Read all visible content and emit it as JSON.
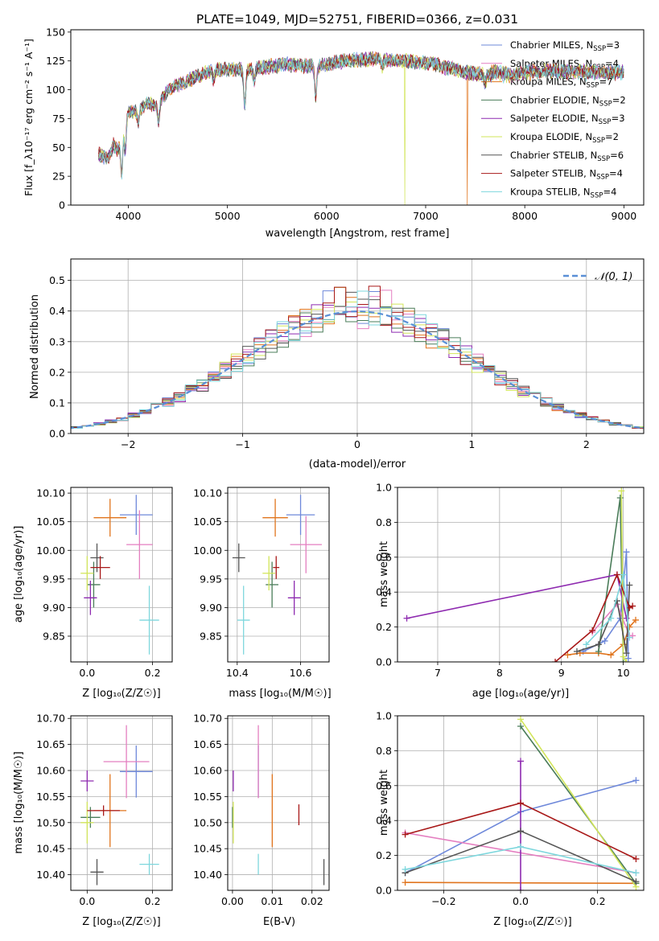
{
  "chart_data": [
    {
      "id": "spectrum",
      "type": "line",
      "title": "PLATE=1049, MJD=52751, FIBERID=0366, z=0.031",
      "xlabel": "wavelength [Angstrom, rest frame]",
      "ylabel": "Flux [f_λ10⁻¹⁷ erg cm⁻² s⁻¹ A⁻¹]",
      "xlim": [
        3420,
        9200
      ],
      "ylim": [
        0,
        152
      ],
      "xticks": [
        "4000",
        "5000",
        "6000",
        "7000",
        "8000",
        "9000"
      ],
      "yticks": [
        "0",
        "25",
        "50",
        "75",
        "100",
        "125",
        "150"
      ],
      "grid": false,
      "legend_position": "top-right",
      "continuum": {
        "x": [
          3700,
          3800,
          3850,
          3900,
          3950,
          4000,
          4100,
          4200,
          4300,
          4400,
          4500,
          4600,
          4700,
          4800,
          4900,
          5000,
          5100,
          5200,
          5300,
          5400,
          5500,
          5600,
          5700,
          5800,
          5900,
          6000,
          6100,
          6200,
          6300,
          6400,
          6500,
          6600,
          6700,
          6800,
          6900,
          7000,
          7100,
          7200,
          7300,
          7400,
          7500,
          7600,
          7700,
          7800,
          7900,
          8000,
          8200,
          8400,
          8600,
          8800,
          9000
        ],
        "y": [
          44,
          40,
          52,
          47,
          68,
          80,
          82,
          88,
          87,
          100,
          104,
          108,
          112,
          115,
          117,
          118,
          118,
          117,
          119,
          120,
          121,
          122,
          121,
          121,
          120,
          122,
          124,
          125,
          126,
          126,
          127,
          126,
          125,
          125,
          124,
          123,
          122,
          119,
          118,
          115,
          114,
          113,
          115,
          113,
          113,
          115,
          116,
          116,
          115,
          115,
          115
        ]
      },
      "absorption_features": [
        {
          "x": 3934,
          "depth": 35
        },
        {
          "x": 3969,
          "depth": 25
        },
        {
          "x": 4101,
          "depth": 10
        },
        {
          "x": 4304,
          "depth": 14
        },
        {
          "x": 4861,
          "depth": 8
        },
        {
          "x": 5175,
          "depth": 32
        },
        {
          "x": 5270,
          "depth": 10
        },
        {
          "x": 5890,
          "depth": 26
        },
        {
          "x": 6563,
          "depth": 8
        },
        {
          "x": 7600,
          "depth": 8
        }
      ],
      "glitches": [
        {
          "x": 6790,
          "series": 5,
          "y": 0
        },
        {
          "x": 7420,
          "series": 2,
          "y": 0
        }
      ],
      "series": [
        {
          "name": "Chabrier MILES, N",
          "sub": "SSP",
          "val": "=3",
          "color": "#6e88da"
        },
        {
          "name": "Salpeter MILES, N",
          "sub": "SSP",
          "val": "=4",
          "color": "#e47fc0"
        },
        {
          "name": "Kroupa MILES, N",
          "sub": "SSP",
          "val": "=7",
          "color": "#e0741d"
        },
        {
          "name": "Chabrier ELODIE, N",
          "sub": "SSP",
          "val": "=2",
          "color": "#4a7c59"
        },
        {
          "name": "Salpeter ELODIE, N",
          "sub": "SSP",
          "val": "=3",
          "color": "#8e2ab0"
        },
        {
          "name": "Kroupa ELODIE, N",
          "sub": "SSP",
          "val": "=2",
          "color": "#d2e55a"
        },
        {
          "name": "Chabrier STELIB, N",
          "sub": "SSP",
          "val": "=6",
          "color": "#555555"
        },
        {
          "name": "Salpeter STELIB, N",
          "sub": "SSP",
          "val": "=4",
          "color": "#a81818"
        },
        {
          "name": "Kroupa STELIB, N",
          "sub": "SSP",
          "val": "=4",
          "color": "#7ed7dd"
        }
      ]
    },
    {
      "id": "residuals",
      "type": "line",
      "xlabel": "(data-model)/error",
      "ylabel": "Normed distribution",
      "xlim": [
        -2.5,
        2.5
      ],
      "ylim": [
        0,
        0.57
      ],
      "xticks": [
        "−2",
        "−1",
        "0",
        "1",
        "2"
      ],
      "yticks": [
        "0.0",
        "0.1",
        "0.2",
        "0.3",
        "0.4",
        "0.5"
      ],
      "grid": true,
      "legend": "𝒩(0, 1)",
      "legend_position": "top-right",
      "bin_width": 0.1
    },
    {
      "id": "age-vs-Z",
      "type": "scatter",
      "xlabel": "Z [log₁₀(Z/Z☉)]",
      "ylabel": "age  [log₁₀(age/yr)]",
      "xlim": [
        -0.05,
        0.26
      ],
      "ylim": [
        9.805,
        10.11
      ],
      "xticks": [
        "0.0",
        "0.2"
      ],
      "yticks": [
        "9.85",
        "9.90",
        "9.95",
        "10.00",
        "10.05",
        "10.10"
      ],
      "grid": true,
      "points": [
        {
          "x": 0.15,
          "xerr": 0.05,
          "y": 10.062,
          "yerr": 0.035,
          "color": "#6e88da"
        },
        {
          "x": 0.16,
          "xerr": 0.04,
          "y": 10.01,
          "yerr": 0.06,
          "color": "#e47fc0"
        },
        {
          "x": 0.07,
          "xerr": 0.05,
          "y": 10.057,
          "yerr": 0.033,
          "color": "#e0741d"
        },
        {
          "x": 0.02,
          "xerr": 0.02,
          "y": 9.94,
          "yerr": 0.04,
          "color": "#4a7c59"
        },
        {
          "x": 0.01,
          "xerr": 0.02,
          "y": 9.917,
          "yerr": 0.03,
          "color": "#8e2ab0"
        },
        {
          "x": 0.0,
          "xerr": 0.02,
          "y": 9.96,
          "yerr": 0.03,
          "color": "#d2e55a"
        },
        {
          "x": 0.03,
          "xerr": 0.02,
          "y": 9.987,
          "yerr": 0.025,
          "color": "#555555"
        },
        {
          "x": 0.04,
          "xerr": 0.03,
          "y": 9.97,
          "yerr": 0.02,
          "color": "#a81818"
        },
        {
          "x": 0.19,
          "xerr": 0.03,
          "y": 9.878,
          "yerr": 0.06,
          "color": "#7ed7dd"
        }
      ]
    },
    {
      "id": "age-vs-mass",
      "type": "scatter",
      "xlabel": "mass [log₁₀(M/M☉)]",
      "xlim": [
        10.37,
        10.69
      ],
      "ylim": [
        9.805,
        10.11
      ],
      "xticks": [
        "10.4",
        "10.6"
      ],
      "yticks": [
        "9.85",
        "9.90",
        "9.95",
        "10.00",
        "10.05",
        "10.10"
      ],
      "grid": true,
      "points": [
        {
          "x": 10.6,
          "xerr": 0.045,
          "y": 10.062,
          "yerr": 0.035,
          "color": "#6e88da"
        },
        {
          "x": 10.617,
          "xerr": 0.05,
          "y": 10.01,
          "yerr": 0.05,
          "color": "#e47fc0"
        },
        {
          "x": 10.52,
          "xerr": 0.04,
          "y": 10.057,
          "yerr": 0.033,
          "color": "#e0741d"
        },
        {
          "x": 10.51,
          "xerr": 0.02,
          "y": 9.94,
          "yerr": 0.04,
          "color": "#4a7c59"
        },
        {
          "x": 10.58,
          "xerr": 0.02,
          "y": 9.917,
          "yerr": 0.03,
          "color": "#8e2ab0"
        },
        {
          "x": 10.5,
          "xerr": 0.02,
          "y": 9.96,
          "yerr": 0.03,
          "color": "#d2e55a"
        },
        {
          "x": 10.405,
          "xerr": 0.02,
          "y": 9.987,
          "yerr": 0.025,
          "color": "#555555"
        },
        {
          "x": 10.523,
          "xerr": 0.01,
          "y": 9.97,
          "yerr": 0.02,
          "color": "#a81818"
        },
        {
          "x": 10.42,
          "xerr": 0.02,
          "y": 9.878,
          "yerr": 0.06,
          "color": "#7ed7dd"
        }
      ]
    },
    {
      "id": "weight-vs-age",
      "type": "line",
      "xlabel": "age  [log₁₀(age/yr)]",
      "ylabel": "mass weight",
      "xlim": [
        6.35,
        10.33
      ],
      "ylim": [
        0,
        1.0
      ],
      "xticks": [
        "7",
        "8",
        "9",
        "10"
      ],
      "yticks": [
        "0.0",
        "0.2",
        "0.4",
        "0.6",
        "0.8",
        "1.0"
      ],
      "grid": true,
      "series": [
        {
          "color": "#6e88da",
          "x": [
            9.35,
            9.7,
            9.95,
            10.05,
            10.08
          ],
          "y": [
            0.06,
            0.12,
            0.25,
            0.63,
            0.02
          ]
        },
        {
          "color": "#e47fc0",
          "x": [
            9.5,
            9.9,
            10.1,
            10.15
          ],
          "y": [
            0.17,
            0.33,
            0.15,
            0.15
          ]
        },
        {
          "color": "#e0741d",
          "x": [
            9.1,
            9.3,
            9.6,
            9.8,
            10.0,
            10.1,
            10.2
          ],
          "y": [
            0.04,
            0.05,
            0.05,
            0.04,
            0.1,
            0.2,
            0.24
          ]
        },
        {
          "color": "#4a7c59",
          "x": [
            9.6,
            9.95,
            10.0
          ],
          "y": [
            0.06,
            0.94,
            0.0
          ]
        },
        {
          "color": "#8e2ab0",
          "x": [
            6.5,
            9.9,
            10.05
          ],
          "y": [
            0.25,
            0.5,
            0.25
          ]
        },
        {
          "color": "#d2e55a",
          "x": [
            9.97,
            10.0,
            10.05
          ],
          "y": [
            0.98,
            0.03,
            0.0
          ]
        },
        {
          "color": "#555555",
          "x": [
            9.25,
            9.6,
            9.9,
            10.05,
            10.1
          ],
          "y": [
            0.06,
            0.1,
            0.35,
            0.05,
            0.44
          ]
        },
        {
          "color": "#a81818",
          "x": [
            8.9,
            9.5,
            9.9,
            10.1,
            10.15
          ],
          "y": [
            0.0,
            0.18,
            0.5,
            0.31,
            0.32
          ]
        },
        {
          "color": "#7ed7dd",
          "x": [
            9.4,
            9.8,
            10.0,
            10.1
          ],
          "y": [
            0.1,
            0.25,
            0.5,
            0.14
          ]
        }
      ]
    },
    {
      "id": "mass-vs-Z",
      "type": "scatter",
      "xlabel": "Z [log₁₀(Z/Z☉)]",
      "ylabel": "mass [log₁₀(M/M☉)]",
      "xlim": [
        -0.05,
        0.26
      ],
      "ylim": [
        10.37,
        10.705
      ],
      "xticks": [
        "0.0",
        "0.2"
      ],
      "yticks": [
        "10.40",
        "10.45",
        "10.50",
        "10.55",
        "10.60",
        "10.65",
        "10.70"
      ],
      "grid": true,
      "points": [
        {
          "x": 0.15,
          "xerr": 0.05,
          "y": 10.598,
          "yerr": 0.05,
          "color": "#6e88da"
        },
        {
          "x": 0.12,
          "xerr": 0.07,
          "y": 10.617,
          "yerr": 0.07,
          "color": "#e47fc0"
        },
        {
          "x": 0.07,
          "xerr": 0.05,
          "y": 10.523,
          "yerr": 0.07,
          "color": "#e0741d"
        },
        {
          "x": 0.01,
          "xerr": 0.03,
          "y": 10.51,
          "yerr": 0.02,
          "color": "#4a7c59"
        },
        {
          "x": 0.0,
          "xerr": 0.02,
          "y": 10.58,
          "yerr": 0.02,
          "color": "#8e2ab0"
        },
        {
          "x": 0.0,
          "xerr": 0.02,
          "y": 10.5,
          "yerr": 0.04,
          "color": "#d2e55a"
        },
        {
          "x": 0.03,
          "xerr": 0.02,
          "y": 10.405,
          "yerr": 0.025,
          "color": "#555555"
        },
        {
          "x": 0.05,
          "xerr": 0.05,
          "y": 10.523,
          "yerr": 0.01,
          "color": "#a81818"
        },
        {
          "x": 0.19,
          "xerr": 0.03,
          "y": 10.42,
          "yerr": 0.02,
          "color": "#7ed7dd"
        }
      ]
    },
    {
      "id": "mass-vs-EBV",
      "type": "scatter",
      "xlabel": "E(B-V)",
      "xlim": [
        -0.0012,
        0.0243
      ],
      "ylim": [
        10.37,
        10.705
      ],
      "xticks": [
        "0.00",
        "0.01",
        "0.02"
      ],
      "yticks": [
        "10.40",
        "10.45",
        "10.50",
        "10.55",
        "10.60",
        "10.65",
        "10.70"
      ],
      "grid": true,
      "points": [
        {
          "x": 0.0065,
          "y": 10.598,
          "yerr": 0.05,
          "color": "#6e88da"
        },
        {
          "x": 0.0065,
          "y": 10.617,
          "yerr": 0.07,
          "color": "#e47fc0"
        },
        {
          "x": 0.01,
          "y": 10.523,
          "yerr": 0.07,
          "color": "#e0741d"
        },
        {
          "x": 0.0,
          "y": 10.51,
          "yerr": 0.02,
          "color": "#4a7c59"
        },
        {
          "x": 0.0002,
          "y": 10.58,
          "yerr": 0.02,
          "color": "#8e2ab0"
        },
        {
          "x": 0.0002,
          "y": 10.5,
          "yerr": 0.04,
          "color": "#d2e55a"
        },
        {
          "x": 0.023,
          "y": 10.405,
          "yerr": 0.025,
          "color": "#555555"
        },
        {
          "x": 0.0167,
          "y": 10.515,
          "yerr": 0.02,
          "color": "#a81818"
        },
        {
          "x": 0.0065,
          "y": 10.42,
          "yerr": 0.02,
          "color": "#7ed7dd"
        }
      ]
    },
    {
      "id": "weight-vs-Z",
      "type": "line",
      "xlabel": "Z [log₁₀(Z/Z☉)]",
      "ylabel": "mass weight",
      "xlim": [
        -0.32,
        0.32
      ],
      "ylim": [
        0,
        1.0
      ],
      "xticks": [
        "−0.2",
        "0.0",
        "0.2"
      ],
      "yticks": [
        "0.0",
        "0.2",
        "0.4",
        "0.6",
        "0.8",
        "1.0"
      ],
      "grid": true,
      "series": [
        {
          "color": "#6e88da",
          "x": [
            -0.3,
            0.0,
            0.3
          ],
          "y": [
            0.1,
            0.45,
            0.63
          ]
        },
        {
          "color": "#e47fc0",
          "x": [
            -0.3,
            0.3
          ],
          "y": [
            0.33,
            0.1
          ]
        },
        {
          "color": "#e0741d",
          "x": [
            -0.3,
            0.3
          ],
          "y": [
            0.045,
            0.04
          ]
        },
        {
          "color": "#4a7c59",
          "x": [
            0.0,
            0.3
          ],
          "y": [
            0.94,
            0.04
          ]
        },
        {
          "color": "#8e2ab0",
          "x": [
            0.0,
            0.0
          ],
          "y": [
            0.0,
            0.74
          ]
        },
        {
          "color": "#d2e55a",
          "x": [
            0.0,
            0.3
          ],
          "y": [
            0.98,
            0.02
          ]
        },
        {
          "color": "#555555",
          "x": [
            -0.3,
            0.0,
            0.3
          ],
          "y": [
            0.1,
            0.34,
            0.05
          ]
        },
        {
          "color": "#a81818",
          "x": [
            -0.3,
            0.0,
            0.3
          ],
          "y": [
            0.32,
            0.5,
            0.18
          ]
        },
        {
          "color": "#7ed7dd",
          "x": [
            -0.3,
            0.0,
            0.3
          ],
          "y": [
            0.12,
            0.25,
            0.1
          ]
        }
      ]
    }
  ]
}
